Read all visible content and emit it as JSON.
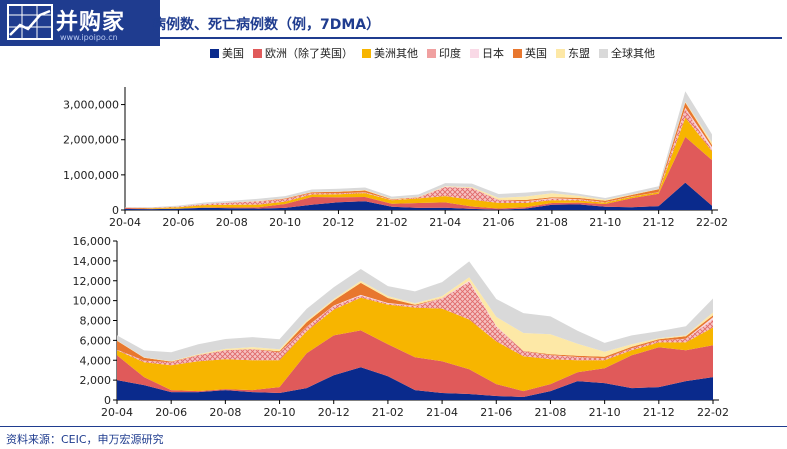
{
  "logo": {
    "text": "并购家",
    "url": "www.ipoipo.cn"
  },
  "header": {
    "title": "病例数、死亡病例数（例，7DMA）"
  },
  "source": "资料来源：CEIC，申万宏源研究",
  "colors": {
    "美国": "#0a2a8c",
    "欧洲（除了英国）": "#e05a5a",
    "美洲其他": "#f7b500",
    "印度": "#f0a0a0",
    "日本": "#f9d9e6",
    "英国": "#e8772e",
    "东盟": "#fde8a6",
    "全球其他": "#d9d9d9"
  },
  "chart_data": [
    {
      "type": "area",
      "stacked": true,
      "title": "病例数",
      "ylim": [
        0,
        3500000
      ],
      "yticks": [
        "0",
        "1,000,000",
        "2,000,000",
        "3,000,000"
      ],
      "xticks": [
        "20-04",
        "20-06",
        "20-08",
        "20-10",
        "20-12",
        "21-02",
        "21-04",
        "21-06",
        "21-08",
        "21-10",
        "21-12",
        "22-02"
      ],
      "x": [
        "20-04",
        "20-05",
        "20-06",
        "20-07",
        "20-08",
        "20-09",
        "20-10",
        "20-11",
        "20-12",
        "21-01",
        "21-02",
        "21-03",
        "21-04",
        "21-05",
        "21-06",
        "21-07",
        "21-08",
        "21-09",
        "21-10",
        "21-11",
        "21-12",
        "22-01",
        "22-02"
      ],
      "series": [
        {
          "name": "美国",
          "values": [
            28000,
            25000,
            35000,
            65000,
            50000,
            40000,
            60000,
            150000,
            220000,
            250000,
            90000,
            60000,
            65000,
            30000,
            12000,
            40000,
            150000,
            160000,
            90000,
            80000,
            110000,
            780000,
            120000
          ]
        },
        {
          "name": "欧洲（除了英国）",
          "values": [
            28000,
            10000,
            6000,
            10000,
            20000,
            40000,
            110000,
            220000,
            140000,
            120000,
            90000,
            140000,
            150000,
            70000,
            30000,
            40000,
            50000,
            50000,
            80000,
            260000,
            350000,
            1300000,
            1300000
          ]
        },
        {
          "name": "美洲其他",
          "values": [
            5000,
            20000,
            40000,
            65000,
            80000,
            75000,
            70000,
            70000,
            90000,
            110000,
            100000,
            130000,
            180000,
            190000,
            160000,
            120000,
            80000,
            60000,
            40000,
            40000,
            40000,
            550000,
            250000
          ]
        },
        {
          "name": "印度",
          "values": [
            2000,
            6000,
            15000,
            30000,
            60000,
            90000,
            70000,
            40000,
            25000,
            15000,
            12000,
            25000,
            260000,
            330000,
            80000,
            40000,
            35000,
            30000,
            15000,
            10000,
            8000,
            250000,
            40000
          ]
        },
        {
          "name": "日本",
          "values": [
            300,
            100,
            100,
            800,
            1200,
            600,
            500,
            1500,
            3000,
            6000,
            1500,
            1500,
            4000,
            5000,
            2000,
            5000,
            20000,
            8000,
            500,
            200,
            200,
            30000,
            80000
          ]
        },
        {
          "name": "英国",
          "values": [
            5000,
            3000,
            1000,
            700,
            1000,
            4000,
            18000,
            25000,
            40000,
            55000,
            12000,
            5000,
            2500,
            2500,
            10000,
            40000,
            30000,
            35000,
            40000,
            40000,
            80000,
            150000,
            60000
          ]
        },
        {
          "name": "东盟",
          "values": [
            500,
            1000,
            2000,
            3000,
            5000,
            8000,
            8000,
            7000,
            8000,
            15000,
            15000,
            10000,
            15000,
            25000,
            50000,
            100000,
            110000,
            60000,
            25000,
            15000,
            8000,
            20000,
            80000
          ]
        },
        {
          "name": "全球其他",
          "values": [
            10000,
            15000,
            25000,
            40000,
            45000,
            60000,
            60000,
            70000,
            80000,
            70000,
            60000,
            70000,
            90000,
            100000,
            110000,
            110000,
            80000,
            60000,
            50000,
            60000,
            80000,
            300000,
            220000
          ]
        }
      ]
    },
    {
      "type": "area",
      "stacked": true,
      "title": "死亡病例数",
      "ylim": [
        0,
        16000
      ],
      "yticks": [
        "0",
        "2,000",
        "4,000",
        "6,000",
        "8,000",
        "10,000",
        "12,000",
        "14,000",
        "16,000"
      ],
      "xticks": [
        "20-04",
        "20-06",
        "20-08",
        "20-10",
        "20-12",
        "21-02",
        "21-04",
        "21-06",
        "21-08",
        "21-10",
        "21-12",
        "22-02"
      ],
      "x": [
        "20-04",
        "20-05",
        "20-06",
        "20-07",
        "20-08",
        "20-09",
        "20-10",
        "20-11",
        "20-12",
        "21-01",
        "21-02",
        "21-03",
        "21-04",
        "21-05",
        "21-06",
        "21-07",
        "21-08",
        "21-09",
        "21-10",
        "21-11",
        "21-12",
        "22-01",
        "22-02"
      ],
      "series": [
        {
          "name": "美国",
          "values": [
            2000,
            1500,
            800,
            800,
            1000,
            800,
            700,
            1200,
            2500,
            3300,
            2400,
            1000,
            700,
            600,
            400,
            300,
            900,
            1900,
            1700,
            1200,
            1300,
            1900,
            2300
          ]
        },
        {
          "name": "欧洲（除了英国）",
          "values": [
            2500,
            800,
            200,
            100,
            100,
            200,
            600,
            3500,
            4000,
            3700,
            3200,
            3300,
            3200,
            2500,
            1200,
            600,
            700,
            900,
            1500,
            3300,
            4000,
            3100,
            3200
          ]
        },
        {
          "name": "美洲其他",
          "values": [
            500,
            1500,
            2500,
            3000,
            3000,
            3000,
            2700,
            2200,
            2600,
            3300,
            4000,
            5000,
            5300,
            5000,
            4300,
            3500,
            2500,
            1200,
            800,
            500,
            500,
            800,
            1800
          ]
        },
        {
          "name": "印度",
          "values": [
            50,
            150,
            300,
            600,
            900,
            1100,
            800,
            450,
            350,
            200,
            100,
            150,
            1000,
            3800,
            1500,
            500,
            400,
            300,
            200,
            200,
            200,
            350,
            800
          ]
        },
        {
          "name": "日本",
          "values": [
            20,
            10,
            5,
            5,
            10,
            15,
            10,
            20,
            50,
            80,
            60,
            30,
            30,
            90,
            50,
            10,
            20,
            30,
            10,
            2,
            2,
            20,
            230
          ]
        },
        {
          "name": "英国",
          "values": [
            900,
            300,
            60,
            20,
            10,
            10,
            100,
            450,
            500,
            1200,
            500,
            100,
            30,
            10,
            10,
            30,
            90,
            130,
            140,
            150,
            120,
            250,
            180
          ]
        },
        {
          "name": "东盟",
          "values": [
            30,
            30,
            50,
            80,
            120,
            200,
            200,
            150,
            150,
            200,
            200,
            150,
            200,
            350,
            900,
            1800,
            2000,
            1200,
            500,
            250,
            100,
            100,
            300
          ]
        },
        {
          "name": "全球其他",
          "values": [
            500,
            700,
            900,
            1000,
            1000,
            1000,
            1000,
            1200,
            1200,
            1200,
            1000,
            1200,
            1400,
            1600,
            1800,
            2000,
            1800,
            1300,
            900,
            900,
            700,
            900,
            1400
          ]
        }
      ]
    }
  ]
}
